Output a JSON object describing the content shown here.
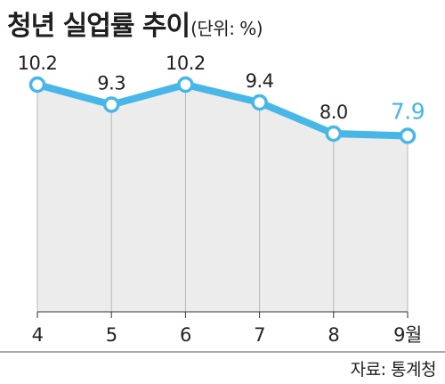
{
  "chart_data": {
    "type": "line",
    "title": "청년 실업률 추이",
    "unit_note": "(단위: %)",
    "x": [
      "4",
      "5",
      "6",
      "7",
      "8",
      "9월"
    ],
    "series": [
      {
        "values": [
          10.2,
          9.3,
          10.2,
          9.4,
          8.0,
          7.9
        ]
      }
    ],
    "data_labels": [
      "10.2",
      "9.3",
      "10.2",
      "9.4",
      "8.0",
      "7.9"
    ],
    "highlight_index": 5,
    "ylim": [
      0,
      10.2
    ],
    "grid": false,
    "colors": {
      "line": "#48b6e6",
      "area": "#ececec",
      "highlight_label": "#48b6e6",
      "axis": "#333333"
    },
    "source": "자료: 통계청"
  }
}
